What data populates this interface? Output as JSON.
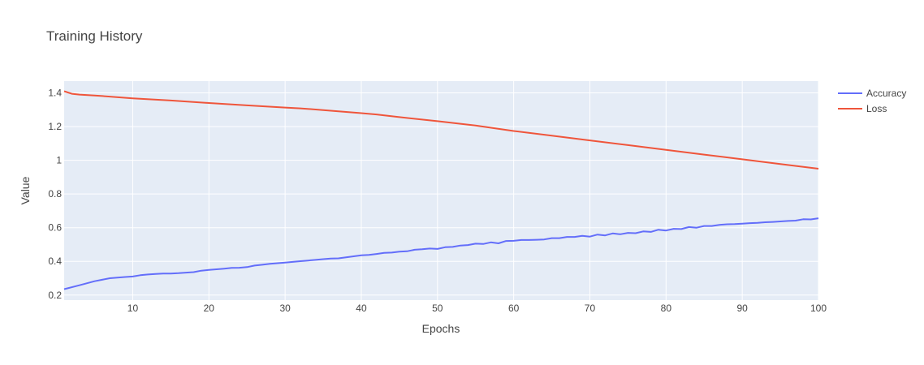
{
  "chart_data": {
    "type": "line",
    "title": "Training History",
    "xlabel": "Epochs",
    "ylabel": "Value",
    "xlim": [
      1,
      100
    ],
    "ylim": [
      0.17,
      1.47
    ],
    "xticks": [
      10,
      20,
      30,
      40,
      50,
      60,
      70,
      80,
      90,
      100
    ],
    "yticks": [
      0.2,
      0.4,
      0.6,
      0.8,
      1,
      1.2,
      1.4
    ],
    "grid": true,
    "legend_position": "top-right",
    "colors": {
      "plot_bg": "#E5ECF6",
      "grid": "#ffffff"
    },
    "series": [
      {
        "name": "Accuracy",
        "color": "#636EFA",
        "x": [
          1,
          3,
          5,
          7,
          9,
          10,
          11,
          12,
          13,
          14,
          15,
          16,
          17,
          18,
          19,
          20,
          21,
          22,
          23,
          24,
          25,
          26,
          27,
          28,
          29,
          30,
          31,
          32,
          33,
          34,
          35,
          36,
          37,
          38,
          39,
          40,
          41,
          42,
          43,
          44,
          45,
          46,
          47,
          48,
          49,
          50,
          51,
          52,
          53,
          54,
          55,
          56,
          57,
          58,
          59,
          60,
          61,
          62,
          63,
          64,
          65,
          66,
          67,
          68,
          69,
          70,
          71,
          72,
          73,
          74,
          75,
          76,
          77,
          78,
          79,
          80,
          81,
          82,
          83,
          84,
          85,
          86,
          87,
          88,
          89,
          90,
          91,
          92,
          93,
          94,
          95,
          96,
          97,
          98,
          99,
          100
        ],
        "y": [
          0.235,
          0.258,
          0.282,
          0.3,
          0.307,
          0.31,
          0.318,
          0.322,
          0.325,
          0.328,
          0.328,
          0.33,
          0.333,
          0.336,
          0.345,
          0.349,
          0.353,
          0.357,
          0.361,
          0.362,
          0.366,
          0.375,
          0.38,
          0.385,
          0.389,
          0.393,
          0.397,
          0.401,
          0.405,
          0.409,
          0.413,
          0.417,
          0.418,
          0.424,
          0.43,
          0.436,
          0.438,
          0.444,
          0.45,
          0.452,
          0.458,
          0.46,
          0.469,
          0.472,
          0.476,
          0.474,
          0.484,
          0.486,
          0.494,
          0.497,
          0.505,
          0.503,
          0.513,
          0.507,
          0.521,
          0.522,
          0.527,
          0.527,
          0.528,
          0.53,
          0.538,
          0.538,
          0.545,
          0.545,
          0.552,
          0.547,
          0.559,
          0.554,
          0.566,
          0.561,
          0.569,
          0.567,
          0.578,
          0.575,
          0.588,
          0.583,
          0.593,
          0.592,
          0.604,
          0.6,
          0.61,
          0.61,
          0.617,
          0.62,
          0.621,
          0.624,
          0.627,
          0.629,
          0.632,
          0.634,
          0.637,
          0.64,
          0.642,
          0.65,
          0.649,
          0.656
        ]
      },
      {
        "name": "Loss",
        "color": "#EF553B",
        "x": [
          1,
          2,
          3,
          5,
          10,
          15,
          20,
          25,
          30,
          32,
          35,
          40,
          42,
          45,
          50,
          55,
          60,
          65,
          70,
          75,
          80,
          85,
          90,
          95,
          100
        ],
        "y": [
          1.41,
          1.395,
          1.39,
          1.385,
          1.368,
          1.355,
          1.34,
          1.326,
          1.313,
          1.308,
          1.298,
          1.28,
          1.272,
          1.256,
          1.232,
          1.206,
          1.174,
          1.146,
          1.118,
          1.09,
          1.062,
          1.034,
          1.006,
          0.978,
          0.95
        ]
      }
    ]
  }
}
